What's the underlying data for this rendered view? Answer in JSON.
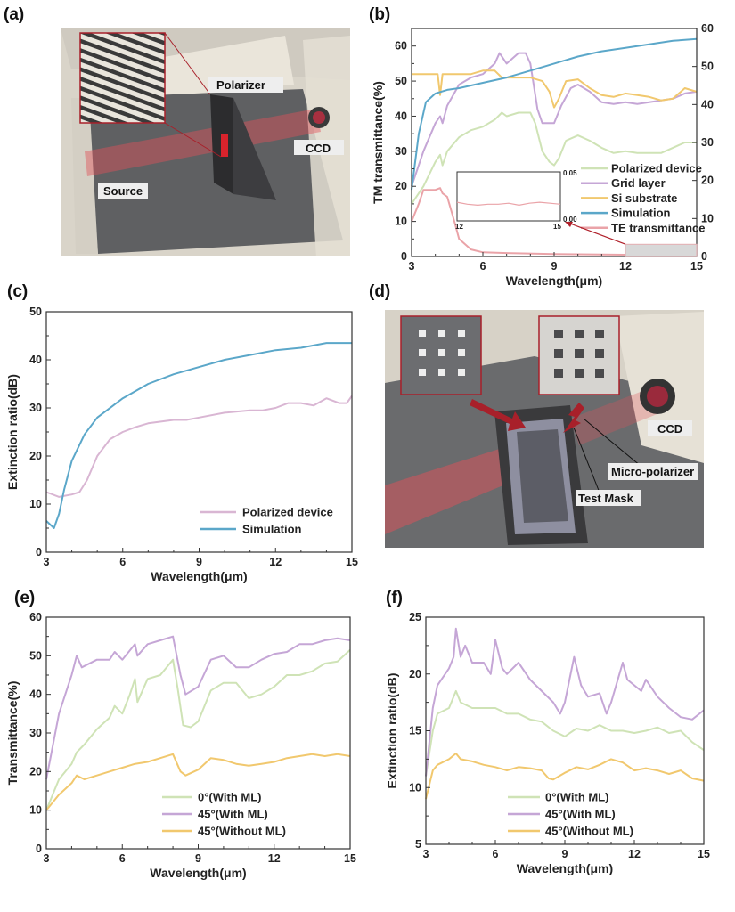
{
  "panels": {
    "a": "(a)",
    "b": "(b)",
    "c": "(c)",
    "d": "(d)",
    "e": "(e)",
    "f": "(f)"
  },
  "figure_a": {
    "labels": {
      "polarizer": "Polarizer",
      "ccd": "CCD",
      "source": "Source"
    },
    "beam_color": "#e0525a"
  },
  "figure_d": {
    "labels": {
      "ccd": "CCD",
      "micro_polarizer": "Micro-polarizer",
      "test_mask": "Test Mask"
    },
    "arrow_color": "#a8202a"
  },
  "chart_data": [
    {
      "type": "line",
      "panel": "b",
      "xlabel": "Wavelength(μm)",
      "ylabel": "TM transmittance(%)",
      "xlim": [
        3,
        15
      ],
      "ylim": [
        0,
        65
      ],
      "y_right_lim": [
        0,
        60
      ],
      "xticks": [
        3,
        6,
        9,
        12,
        15
      ],
      "yticks": [
        0,
        10,
        20,
        30,
        40,
        50,
        60
      ],
      "y_right_ticks": [
        0,
        10,
        20,
        30,
        40,
        50,
        60
      ],
      "legend": "right-middle",
      "series": [
        {
          "name": "Polarized device",
          "color": "#cfe3b6",
          "x": [
            3,
            3.5,
            4,
            4.2,
            4.3,
            4.5,
            5,
            5.5,
            6,
            6.5,
            6.8,
            7,
            7.5,
            8,
            8.2,
            8.5,
            8.8,
            9,
            9.2,
            9.5,
            10,
            10.5,
            11,
            11.5,
            12,
            12.5,
            13,
            13.5,
            14,
            14.5,
            15
          ],
          "y": [
            15,
            20,
            27,
            29,
            26,
            30,
            34,
            36,
            37,
            39,
            41,
            40,
            41,
            41,
            38,
            30,
            27,
            26,
            28,
            33,
            34.5,
            33,
            31,
            29.5,
            30,
            29.5,
            29.5,
            29.5,
            31,
            32.5,
            32.5
          ]
        },
        {
          "name": "Grid layer",
          "color": "#c5a6d6",
          "x": [
            3,
            3.5,
            4,
            4.2,
            4.3,
            4.5,
            5,
            5.5,
            6,
            6.5,
            6.7,
            7,
            7.5,
            7.8,
            8,
            8.3,
            8.5,
            9,
            9.3,
            9.7,
            10,
            10.5,
            11,
            11.5,
            12,
            12.5,
            13,
            13.5,
            14,
            14.5,
            15
          ],
          "y": [
            20,
            30,
            38,
            40,
            38,
            43,
            49,
            51,
            52,
            55,
            58,
            55,
            58,
            58,
            55,
            42,
            38,
            38,
            43,
            48,
            49,
            47,
            44,
            43.5,
            44,
            43.5,
            44,
            44.5,
            45,
            46.5,
            47
          ]
        },
        {
          "name": "Si substrate",
          "color": "#f1c86e",
          "x": [
            3,
            4.1,
            4.2,
            4.3,
            5,
            5.5,
            6,
            6.5,
            6.8,
            7,
            8,
            8.5,
            8.8,
            9,
            9.2,
            9.5,
            10,
            10.5,
            11,
            11.5,
            12,
            12.5,
            13,
            13.5,
            14,
            14.5,
            15
          ],
          "y": [
            52,
            52,
            46,
            52,
            52,
            52,
            53,
            53,
            51,
            51,
            51,
            50,
            47,
            42.5,
            45,
            50,
            50.5,
            48,
            46,
            45.5,
            46.5,
            46,
            45.5,
            44.5,
            45,
            48,
            47
          ]
        },
        {
          "name": "Simulation",
          "color": "#5ba7c9",
          "x": [
            3,
            3.3,
            3.6,
            4,
            4.5,
            5,
            6,
            7,
            8,
            9,
            10,
            11,
            12,
            13,
            14,
            15
          ],
          "y": [
            19,
            35,
            44,
            46.5,
            47.5,
            48,
            49.5,
            51,
            53,
            55,
            57,
            58.5,
            59.5,
            60.5,
            61.5,
            62
          ]
        },
        {
          "name": "TE transmittance",
          "color": "#eaa3a8",
          "x": [
            3,
            3.3,
            3.5,
            4,
            4.2,
            4.3,
            4.5,
            4.8,
            5,
            5.5,
            6,
            7,
            9,
            12,
            15
          ],
          "y": [
            10,
            15,
            19,
            19,
            19.5,
            18,
            17,
            10,
            5,
            2,
            1.2,
            1,
            0.7,
            0.5,
            0.5
          ]
        }
      ],
      "inset": {
        "xlim": [
          12,
          15
        ],
        "ylim": [
          0,
          0.05
        ],
        "xtick_labels": [
          "12",
          "15"
        ],
        "ytick_labels": [
          "0.00",
          "0.05"
        ],
        "series": {
          "name": "TE transmittance",
          "color": "#eaa3a8",
          "x": [
            12,
            12.3,
            12.6,
            12.9,
            13.2,
            13.5,
            13.8,
            14.1,
            14.4,
            14.7,
            15
          ],
          "y": [
            0.019,
            0.017,
            0.016,
            0.017,
            0.017,
            0.018,
            0.016,
            0.018,
            0.019,
            0.018,
            0.017
          ]
        }
      }
    },
    {
      "type": "line",
      "panel": "c",
      "xlabel": "Wavelength(μm)",
      "ylabel": "Extinction ratio(dB)",
      "xlim": [
        3,
        15
      ],
      "ylim": [
        0,
        50
      ],
      "xticks": [
        3,
        6,
        9,
        12,
        15
      ],
      "yticks": [
        0,
        10,
        20,
        30,
        40,
        50
      ],
      "legend": "bottom-right",
      "series": [
        {
          "name": "Polarized device",
          "color": "#d9b6d3",
          "x": [
            3,
            3.5,
            4,
            4.3,
            4.6,
            5,
            5.5,
            6,
            6.5,
            7,
            8,
            8.5,
            9,
            10,
            11,
            11.5,
            12,
            12.5,
            13,
            13.5,
            14,
            14.5,
            14.8,
            15
          ],
          "y": [
            12.5,
            11.5,
            12,
            12.5,
            15,
            20,
            23.5,
            25,
            26,
            26.8,
            27.5,
            27.5,
            28,
            29,
            29.5,
            29.5,
            30,
            31,
            31,
            30.5,
            32,
            31,
            31,
            32.5
          ]
        },
        {
          "name": "Simulation",
          "color": "#5ba7c9",
          "x": [
            3,
            3.3,
            3.5,
            3.7,
            4,
            4.5,
            5,
            6,
            7,
            8,
            9,
            10,
            11,
            12,
            13,
            14,
            15
          ],
          "y": [
            6.5,
            5,
            8,
            13,
            19,
            24.5,
            28,
            32,
            35,
            37,
            38.5,
            40,
            41,
            42,
            42.5,
            43.5,
            43.5
          ]
        }
      ]
    },
    {
      "type": "line",
      "panel": "e",
      "xlabel": "Wavelength(μm)",
      "ylabel": "Transmittance(%)",
      "xlim": [
        3,
        15
      ],
      "ylim": [
        0,
        60
      ],
      "xticks": [
        3,
        6,
        9,
        12,
        15
      ],
      "yticks": [
        0,
        10,
        20,
        30,
        40,
        50,
        60
      ],
      "legend": "bottom-middle",
      "series": [
        {
          "name": "0°(With ML)",
          "color": "#cfe3b6",
          "x": [
            3,
            3.5,
            4,
            4.2,
            4.5,
            5,
            5.5,
            5.7,
            6,
            6.3,
            6.5,
            6.6,
            7,
            7.5,
            8,
            8.2,
            8.4,
            8.7,
            9,
            9.5,
            10,
            10.5,
            11,
            11.5,
            12,
            12.5,
            13,
            13.5,
            14,
            14.5,
            15
          ],
          "y": [
            10,
            18,
            22,
            25,
            27,
            31,
            34,
            37,
            35,
            40,
            44,
            38,
            44,
            45,
            49,
            41,
            32,
            31.5,
            33,
            41,
            43,
            43,
            39,
            40,
            42,
            45,
            45,
            46,
            48,
            48.5,
            51.5
          ]
        },
        {
          "name": "45°(With ML)",
          "color": "#c5a6d6",
          "x": [
            3,
            3.5,
            4,
            4.2,
            4.4,
            5,
            5.5,
            5.7,
            6,
            6.5,
            6.6,
            7,
            7.5,
            8,
            8.3,
            8.5,
            9,
            9.5,
            10,
            10.5,
            11,
            11.5,
            12,
            12.5,
            13,
            13.5,
            14,
            14.5,
            15
          ],
          "y": [
            18,
            35,
            45,
            50,
            47,
            49,
            49,
            51,
            49,
            53,
            50,
            53,
            54,
            55,
            45,
            40,
            42,
            49,
            50,
            47,
            47,
            49,
            50.5,
            51,
            53,
            53,
            54,
            54.5,
            54
          ]
        },
        {
          "name": "45°(Without ML)",
          "color": "#f1c86e",
          "x": [
            3,
            3.5,
            4,
            4.2,
            4.5,
            5,
            5.5,
            6,
            6.5,
            7,
            7.5,
            8,
            8.3,
            8.5,
            9,
            9.5,
            10,
            10.5,
            11,
            11.5,
            12,
            12.5,
            13,
            13.5,
            14,
            14.5,
            15
          ],
          "y": [
            10,
            14,
            17,
            19,
            18,
            19,
            20,
            21,
            22,
            22.5,
            23.5,
            24.5,
            20,
            19,
            20.5,
            23.5,
            23,
            22,
            21.5,
            22,
            22.5,
            23.5,
            24,
            24.5,
            24,
            24.5,
            24
          ]
        }
      ]
    },
    {
      "type": "line",
      "panel": "f",
      "xlabel": "Wavelength(μm)",
      "ylabel": "Extinction ratio(dB)",
      "xlim": [
        3,
        15
      ],
      "ylim": [
        5,
        25
      ],
      "xticks": [
        3,
        6,
        9,
        12,
        15
      ],
      "yticks": [
        5,
        10,
        15,
        20,
        25
      ],
      "legend": "bottom-middle",
      "series": [
        {
          "name": "0°(With ML)",
          "color": "#cfe3b6",
          "x": [
            3,
            3.3,
            3.5,
            4,
            4.3,
            4.5,
            5,
            5.5,
            6,
            6.5,
            7,
            7.5,
            8,
            8.5,
            9,
            9.5,
            10,
            10.5,
            11,
            11.5,
            12,
            12.5,
            13,
            13.5,
            14,
            14.5,
            15
          ],
          "y": [
            11,
            15,
            16.5,
            17,
            18.5,
            17.5,
            17,
            17,
            17,
            16.5,
            16.5,
            16,
            15.8,
            15,
            14.5,
            15.2,
            15,
            15.5,
            15,
            15,
            14.8,
            15,
            15.3,
            14.8,
            15,
            14,
            13.3
          ]
        },
        {
          "name": "45°(With ML)",
          "color": "#c5a6d6",
          "x": [
            3,
            3.3,
            3.5,
            4,
            4.2,
            4.3,
            4.5,
            4.7,
            5,
            5.5,
            5.8,
            6,
            6.3,
            6.5,
            7,
            7.5,
            8,
            8.5,
            8.8,
            9,
            9.4,
            9.7,
            10,
            10.5,
            10.8,
            11,
            11.5,
            11.7,
            12,
            12.3,
            12.5,
            13,
            13.5,
            14,
            14.5,
            15
          ],
          "y": [
            11,
            17,
            19,
            20.5,
            21.5,
            24,
            21.5,
            22.5,
            21,
            21,
            20,
            23,
            20.5,
            20,
            21,
            19.5,
            18.5,
            17.5,
            16.5,
            17.5,
            21.5,
            19,
            18,
            18.3,
            16.5,
            17.5,
            21,
            19.5,
            19,
            18.5,
            19.5,
            18,
            17,
            16.2,
            16,
            16.8
          ]
        },
        {
          "name": "45°(Without ML)",
          "color": "#f1c86e",
          "x": [
            3,
            3.3,
            3.5,
            4,
            4.3,
            4.5,
            5,
            5.5,
            6,
            6.5,
            7,
            7.5,
            8,
            8.3,
            8.5,
            9,
            9.5,
            10,
            10.5,
            11,
            11.5,
            12,
            12.5,
            13,
            13.5,
            14,
            14.5,
            15
          ],
          "y": [
            9,
            11.5,
            12,
            12.5,
            13,
            12.5,
            12.3,
            12,
            11.8,
            11.5,
            11.8,
            11.7,
            11.5,
            10.8,
            10.7,
            11.3,
            11.8,
            11.6,
            12,
            12.5,
            12.2,
            11.5,
            11.7,
            11.5,
            11.2,
            11.5,
            10.8,
            10.6
          ]
        }
      ]
    }
  ]
}
